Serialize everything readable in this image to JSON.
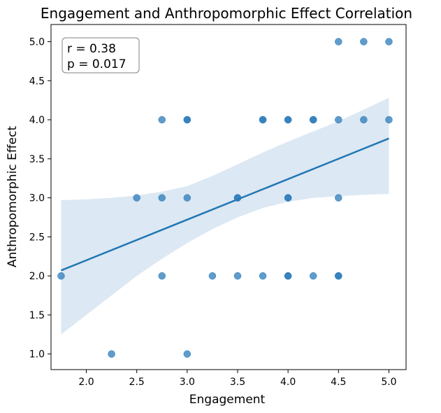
{
  "chart_data": {
    "type": "scatter",
    "title": "Engagement and Anthropomorphic Effect Correlation",
    "xlabel": "Engagement",
    "ylabel": "Anthropomorphic Effect",
    "xlim": [
      1.65,
      5.17
    ],
    "ylim": [
      0.8,
      5.22
    ],
    "xticks": [
      "2.0",
      "2.5",
      "3.0",
      "3.5",
      "4.0",
      "4.5",
      "5.0"
    ],
    "yticks": [
      "1.0",
      "1.5",
      "2.0",
      "2.5",
      "3.0",
      "3.5",
      "4.0",
      "4.5",
      "5.0"
    ],
    "points": [
      {
        "x": 1.75,
        "y": 2.0
      },
      {
        "x": 2.25,
        "y": 1.0
      },
      {
        "x": 2.5,
        "y": 3.0
      },
      {
        "x": 2.75,
        "y": 4.0
      },
      {
        "x": 2.75,
        "y": 3.0
      },
      {
        "x": 2.75,
        "y": 2.0
      },
      {
        "x": 3.0,
        "y": 4.0
      },
      {
        "x": 3.0,
        "y": 4.0
      },
      {
        "x": 3.0,
        "y": 3.0
      },
      {
        "x": 3.0,
        "y": 1.0
      },
      {
        "x": 3.25,
        "y": 2.0
      },
      {
        "x": 3.5,
        "y": 3.0
      },
      {
        "x": 3.5,
        "y": 3.0
      },
      {
        "x": 3.5,
        "y": 2.0
      },
      {
        "x": 3.75,
        "y": 4.0
      },
      {
        "x": 3.75,
        "y": 4.0
      },
      {
        "x": 3.75,
        "y": 2.0
      },
      {
        "x": 4.0,
        "y": 4.0
      },
      {
        "x": 4.0,
        "y": 4.0
      },
      {
        "x": 4.0,
        "y": 3.0
      },
      {
        "x": 4.0,
        "y": 3.0
      },
      {
        "x": 4.0,
        "y": 2.0
      },
      {
        "x": 4.0,
        "y": 2.0
      },
      {
        "x": 4.25,
        "y": 4.0
      },
      {
        "x": 4.25,
        "y": 4.0
      },
      {
        "x": 4.25,
        "y": 2.0
      },
      {
        "x": 4.5,
        "y": 5.0
      },
      {
        "x": 4.5,
        "y": 4.0
      },
      {
        "x": 4.5,
        "y": 3.0
      },
      {
        "x": 4.5,
        "y": 2.0
      },
      {
        "x": 4.5,
        "y": 2.0
      },
      {
        "x": 4.75,
        "y": 5.0
      },
      {
        "x": 4.75,
        "y": 4.0
      },
      {
        "x": 5.0,
        "y": 5.0
      },
      {
        "x": 5.0,
        "y": 4.0
      }
    ],
    "regression_line": {
      "x": [
        1.75,
        5.0
      ],
      "y": [
        2.07,
        3.76
      ]
    },
    "confidence_band": {
      "x": [
        1.75,
        2.0,
        2.25,
        2.5,
        2.75,
        3.0,
        3.25,
        3.5,
        3.75,
        4.0,
        4.25,
        4.5,
        4.75,
        5.0
      ],
      "upper": [
        2.97,
        2.98,
        3.0,
        3.03,
        3.08,
        3.15,
        3.28,
        3.43,
        3.58,
        3.72,
        3.85,
        3.98,
        4.13,
        4.28
      ],
      "lower": [
        1.25,
        1.5,
        1.75,
        2.0,
        2.22,
        2.42,
        2.6,
        2.75,
        2.87,
        2.95,
        3.0,
        3.02,
        3.04,
        3.05
      ]
    },
    "colors": {
      "points": "#2b7bb9",
      "line": "#1f77b4",
      "band": "#dce8f3"
    },
    "annotation": {
      "line1": "r = 0.38",
      "line2": "p = 0.017",
      "placement": "top-left"
    }
  }
}
